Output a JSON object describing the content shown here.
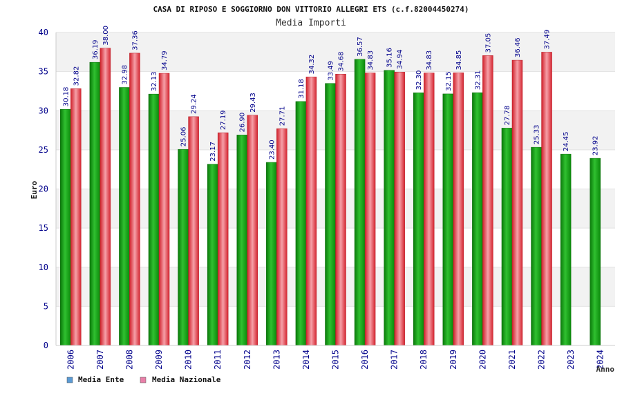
{
  "chart_data": {
    "type": "bar",
    "title": "CASA DI RIPOSO E SOGGIORNO DON VITTORIO ALLEGRI ETS (c.f.82004450274)",
    "subtitle": "Media Importi",
    "xlabel": "Anno",
    "ylabel": "Euro",
    "ylim": [
      0,
      40
    ],
    "yticks": [
      0,
      5,
      10,
      15,
      20,
      25,
      30,
      35,
      40
    ],
    "grid": true,
    "legend_position": "bottom-left",
    "categories": [
      "2006",
      "2007",
      "2008",
      "2009",
      "2010",
      "2011",
      "2012",
      "2013",
      "2014",
      "2015",
      "2016",
      "2017",
      "2018",
      "2019",
      "2020",
      "2021",
      "2022",
      "2023",
      "2024"
    ],
    "series": [
      {
        "name": "Media Ente",
        "color": "#1aa31a",
        "legend_color": "#5b9bd5",
        "values": [
          30.18,
          36.19,
          32.98,
          32.13,
          25.06,
          23.17,
          26.9,
          23.4,
          31.18,
          33.49,
          36.57,
          35.16,
          32.3,
          32.15,
          32.31,
          27.78,
          25.33,
          24.45,
          23.92
        ],
        "labels": [
          "30.18",
          "36.19",
          "32.98",
          "32.13",
          "25.06",
          "23.17",
          "26.90",
          "23.40",
          "31.18",
          "33.49",
          "36.57",
          "35.16",
          "32.30",
          "32.15",
          "32.31",
          "27.78",
          "25.33",
          "24.45",
          "23.92"
        ]
      },
      {
        "name": "Media Nazionale",
        "color": "#e8353f",
        "legend_color": "#e87fa8",
        "values": [
          32.82,
          38.0,
          37.36,
          34.79,
          29.24,
          27.19,
          29.43,
          27.71,
          34.32,
          34.68,
          34.83,
          34.94,
          34.83,
          34.85,
          37.05,
          36.46,
          37.49,
          null,
          null
        ],
        "labels": [
          "32.82",
          "38.00",
          "37.36",
          "34.79",
          "29.24",
          "27.19",
          "29.43",
          "27.71",
          "34.32",
          "34.68",
          "34.83",
          "34.94",
          "34.83",
          "34.85",
          "37.05",
          "36.46",
          "37.49",
          null,
          null
        ]
      }
    ]
  }
}
